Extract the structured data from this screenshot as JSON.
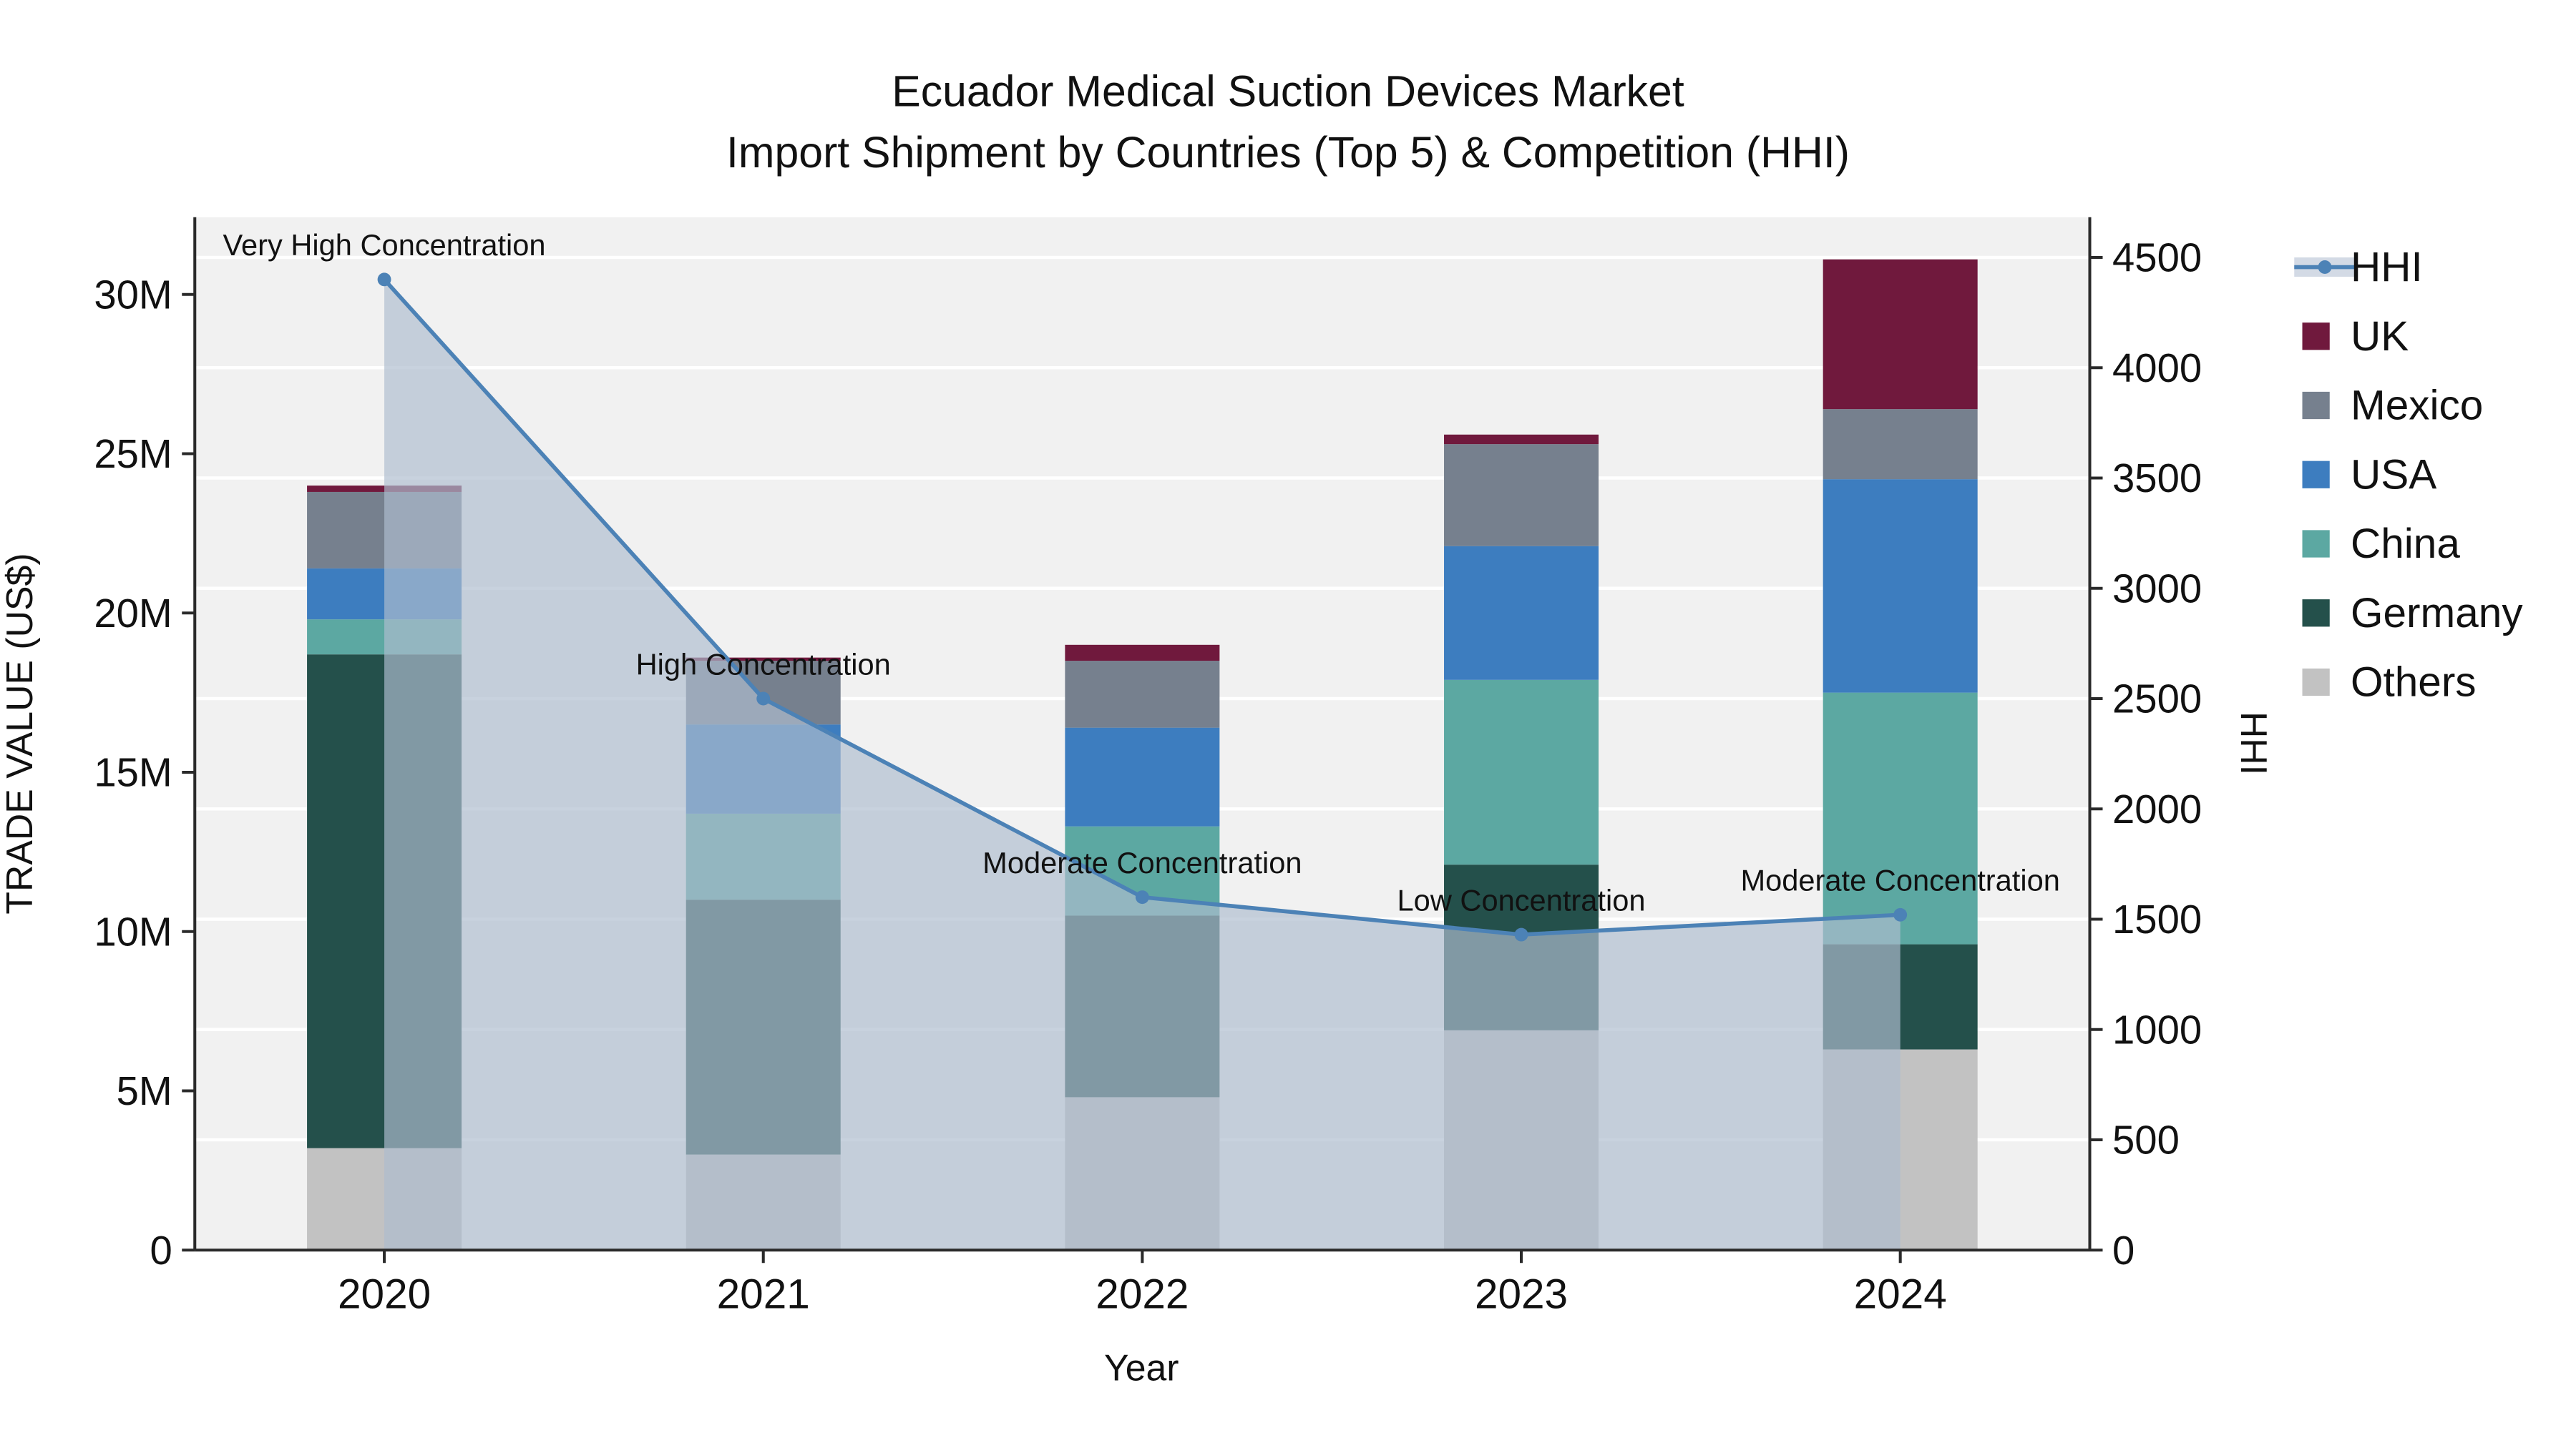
{
  "chart_data": {
    "type": "bar",
    "title": "Ecuador Medical Suction Devices Market",
    "subtitle": "Import Shipment by Countries (Top 5) & Competition (HHI)",
    "xlabel": "Year",
    "ylabel_left": "TRADE VALUE (US$)",
    "ylabel_right": "HHI",
    "categories": [
      "2020",
      "2021",
      "2022",
      "2023",
      "2024"
    ],
    "bar_value_unit": "million US$",
    "series": [
      {
        "name": "Others",
        "color": "#c2c2c2",
        "values": [
          3.2,
          3.0,
          4.8,
          6.9,
          6.3
        ]
      },
      {
        "name": "Germany",
        "color": "#24504b",
        "values": [
          15.5,
          8.0,
          5.7,
          5.2,
          3.3
        ]
      },
      {
        "name": "China",
        "color": "#5ca8a2",
        "values": [
          1.1,
          2.7,
          2.8,
          5.8,
          7.9
        ]
      },
      {
        "name": "USA",
        "color": "#3d7dbf",
        "values": [
          1.6,
          2.8,
          3.1,
          4.2,
          6.7
        ]
      },
      {
        "name": "Mexico",
        "color": "#76808e",
        "values": [
          2.4,
          2.0,
          2.1,
          3.2,
          2.2
        ]
      },
      {
        "name": "UK",
        "color": "#70193d",
        "values": [
          0.2,
          0.1,
          0.5,
          0.3,
          4.7
        ]
      }
    ],
    "hhi_line": {
      "name": "HHI",
      "color": "#4c82b6",
      "fill_color": "#aebccf",
      "fill_opacity": 0.68,
      "values": [
        4400,
        2500,
        1600,
        1430,
        1520
      ]
    },
    "annotations": [
      "Very High Concentration",
      "High Concentration",
      "Moderate Concentration",
      "Low Concentration",
      "Moderate Concentration"
    ],
    "y_left": {
      "ticks": [
        0,
        5,
        10,
        15,
        20,
        25,
        30
      ],
      "labels": [
        "0",
        "5M",
        "10M",
        "15M",
        "20M",
        "25M",
        "30M"
      ],
      "range_max": 30
    },
    "y_right": {
      "ticks": [
        0,
        500,
        1000,
        1500,
        2000,
        2500,
        3000,
        3500,
        4000,
        4500
      ],
      "labels": [
        "0",
        "500",
        "1000",
        "1500",
        "2000",
        "2500",
        "3000",
        "3500",
        "4000",
        "4500"
      ],
      "range_max": 4500
    },
    "legend": [
      {
        "label": "HHI",
        "type": "line",
        "color": "#4c82b6"
      },
      {
        "label": "UK",
        "type": "swatch",
        "color": "#70193d"
      },
      {
        "label": "Mexico",
        "type": "swatch",
        "color": "#76808e"
      },
      {
        "label": "USA",
        "type": "swatch",
        "color": "#3d7dbf"
      },
      {
        "label": "China",
        "type": "swatch",
        "color": "#5ca8a2"
      },
      {
        "label": "Germany",
        "type": "swatch",
        "color": "#24504b"
      },
      {
        "label": "Others",
        "type": "swatch",
        "color": "#c2c2c2"
      }
    ],
    "colors": {
      "plot_background": "#f1f1f1",
      "grid": "#ffffff",
      "axis_line": "#2a2a2a",
      "text": "#111111"
    },
    "layout_hints": {
      "grid": "horizontal-white",
      "legend_position": "right"
    }
  }
}
